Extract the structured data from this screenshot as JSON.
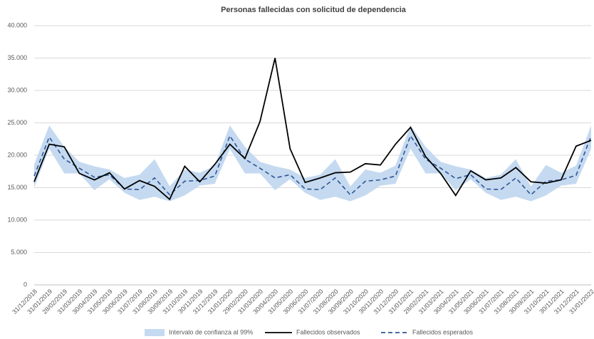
{
  "chart_data": {
    "type": "line",
    "title": "Personas fallecidas con solicitud de dependencia",
    "categories": [
      "31/12/2018",
      "31/01/2019",
      "28/02/2019",
      "31/03/2019",
      "30/04/2019",
      "31/05/2019",
      "30/06/2019",
      "31/07/2019",
      "31/08/2019",
      "30/09/2019",
      "31/10/2019",
      "30/11/2019",
      "31/12/2019",
      "31/01/2020",
      "29/02/2020",
      "31/03/2020",
      "30/04/2020",
      "31/05/2020",
      "30/06/2020",
      "31/07/2020",
      "31/08/2020",
      "30/09/2020",
      "31/10/2020",
      "30/11/2020",
      "31/12/2020",
      "31/01/2021",
      "28/02/2021",
      "31/03/2021",
      "30/04/2021",
      "31/05/2021",
      "30/06/2021",
      "31/07/2021",
      "31/08/2021",
      "30/09/2021",
      "31/10/2021",
      "30/11/2021",
      "31/12/2021",
      "31/01/2022"
    ],
    "band": {
      "name": "Intervalo de confianza al 99%",
      "color": "#c5daf0",
      "upper": [
        18600,
        24600,
        21300,
        19000,
        18300,
        17800,
        16500,
        17000,
        19400,
        15200,
        17800,
        17300,
        18400,
        24600,
        21300,
        19000,
        18300,
        17800,
        16500,
        17000,
        19400,
        15200,
        17800,
        17300,
        18400,
        24600,
        21300,
        19000,
        18300,
        17800,
        16500,
        17000,
        19400,
        15200,
        18500,
        17300,
        18400,
        24600
      ],
      "lower": [
        15000,
        21000,
        17200,
        17200,
        14600,
        16300,
        14200,
        13100,
        13600,
        12900,
        13800,
        15300,
        15600,
        21000,
        17200,
        17200,
        14600,
        16300,
        14200,
        13100,
        13600,
        12900,
        13800,
        15300,
        15600,
        21000,
        17200,
        17200,
        14600,
        16300,
        14200,
        13100,
        13600,
        12900,
        13800,
        15300,
        15600,
        21000
      ]
    },
    "series": [
      {
        "name": "Fallecidos observados",
        "color": "#000000",
        "dashed": false,
        "values": [
          15900,
          21700,
          21300,
          17200,
          16200,
          17300,
          14800,
          16100,
          15200,
          13200,
          18300,
          15900,
          18600,
          21700,
          19500,
          25200,
          35000,
          21000,
          15800,
          16500,
          17300,
          17400,
          18700,
          18500,
          21700,
          24300,
          19800,
          17200,
          13800,
          17600,
          16200,
          16500,
          18100,
          15900,
          15700,
          16200,
          21400,
          22300
        ]
      },
      {
        "name": "Fallecidos esperados",
        "color": "#2f5597",
        "dashed": true,
        "values": [
          16800,
          22800,
          19400,
          18000,
          16600,
          17000,
          14800,
          14700,
          16500,
          13900,
          16000,
          16100,
          16800,
          23000,
          19400,
          18000,
          16500,
          17000,
          14800,
          14700,
          16500,
          13900,
          16000,
          16200,
          16800,
          23000,
          19400,
          18000,
          16400,
          17000,
          14800,
          14700,
          16500,
          13900,
          16000,
          16200,
          16900,
          23000
        ]
      }
    ],
    "ylim": [
      0,
      40000
    ],
    "yticks": [
      {
        "value": 0,
        "label": "0"
      },
      {
        "value": 5000,
        "label": "5.000"
      },
      {
        "value": 10000,
        "label": "10.000"
      },
      {
        "value": 15000,
        "label": "15.000"
      },
      {
        "value": 20000,
        "label": "20.000"
      },
      {
        "value": 25000,
        "label": "25.000"
      },
      {
        "value": 30000,
        "label": "30.000"
      },
      {
        "value": 35000,
        "label": "35.000"
      },
      {
        "value": 40000,
        "label": "40.000"
      }
    ],
    "grid": true
  }
}
